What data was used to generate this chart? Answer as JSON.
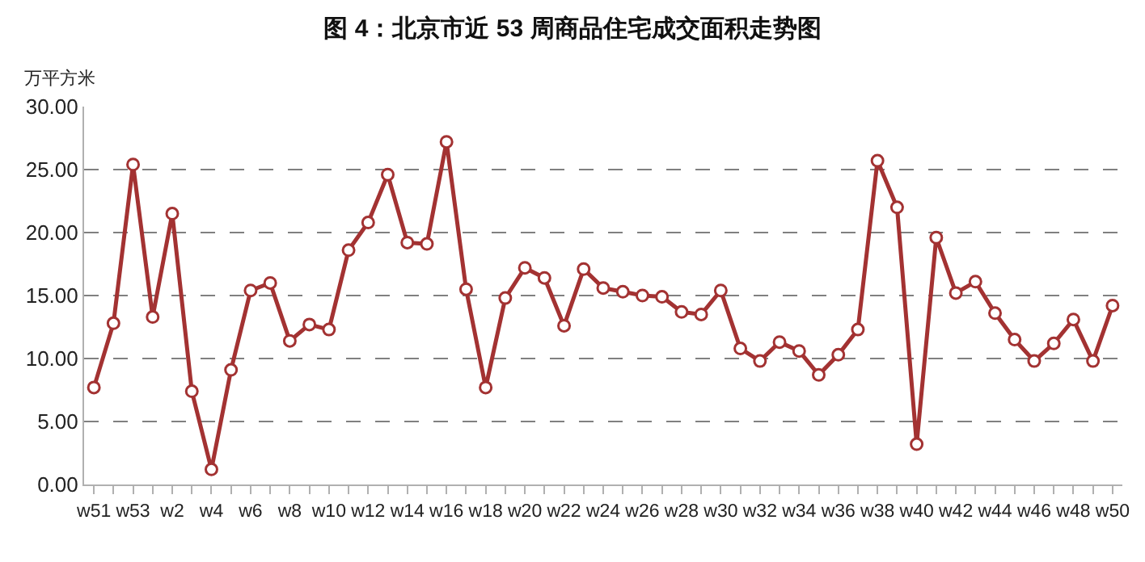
{
  "chart_data": {
    "type": "line",
    "title": "图 4：北京市近 53 周商品住宅成交面积走势图",
    "ylabel": "万平方米",
    "categories": [
      "w51",
      null,
      "w53",
      null,
      "w2",
      null,
      "w4",
      null,
      "w6",
      null,
      "w8",
      null,
      "w10",
      null,
      "w12",
      null,
      "w14",
      null,
      "w16",
      null,
      "w18",
      null,
      "w20",
      null,
      "w22",
      null,
      "w24",
      null,
      "w26",
      null,
      "w28",
      null,
      "w30",
      null,
      "w32",
      null,
      "w34",
      null,
      "w36",
      null,
      "w38",
      null,
      "w40",
      null,
      "w42",
      null,
      "w44",
      null,
      "w46",
      null,
      "w48",
      null,
      "w50"
    ],
    "series": [
      {
        "color": "#a33232",
        "values": [
          7.7,
          12.8,
          25.4,
          13.3,
          21.5,
          7.4,
          1.2,
          9.1,
          15.4,
          16.0,
          11.4,
          12.7,
          12.3,
          18.6,
          20.8,
          24.6,
          19.2,
          19.1,
          27.2,
          15.5,
          7.7,
          14.8,
          17.2,
          16.4,
          12.6,
          17.1,
          15.6,
          15.3,
          15.0,
          14.9,
          13.7,
          13.5,
          15.4,
          10.8,
          9.8,
          11.3,
          10.6,
          8.7,
          10.3,
          12.3,
          25.7,
          22.0,
          3.2,
          19.6,
          15.2,
          16.1,
          13.6,
          11.5,
          9.8,
          11.2,
          13.1,
          9.8,
          14.2
        ]
      }
    ],
    "ylim": [
      0,
      30
    ],
    "yticks": [
      {
        "value": 0,
        "label": "0.00"
      },
      {
        "value": 5,
        "label": "5.00"
      },
      {
        "value": 10,
        "label": "10.00"
      },
      {
        "value": 15,
        "label": "15.00"
      },
      {
        "value": 20,
        "label": "20.00"
      },
      {
        "value": 25,
        "label": "25.00"
      },
      {
        "value": 30,
        "label": "30.00"
      }
    ],
    "grid": "y",
    "marker": "circle",
    "line_style": "solid"
  }
}
